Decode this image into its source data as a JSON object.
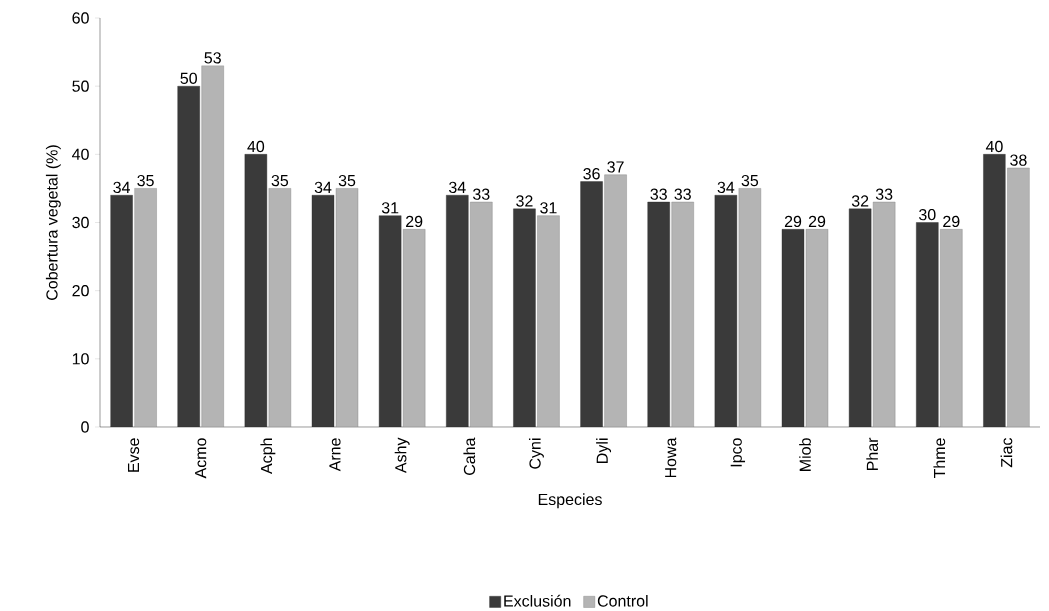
{
  "chart_data": {
    "type": "bar",
    "xlabel": "Especies",
    "ylabel": "Cobertura vegetal (%)",
    "categories": [
      "Evse",
      "Acmo",
      "Acph",
      "Arne",
      "Ashy",
      "Caha",
      "Cyni",
      "Dyli",
      "Howa",
      "Ipco",
      "Miob",
      "Phar",
      "Thme",
      "Ziac"
    ],
    "series": [
      {
        "name": "Exclusión",
        "color": "#3a3a3a",
        "values": [
          34,
          50,
          40,
          34,
          31,
          34,
          32,
          36,
          33,
          34,
          29,
          32,
          30,
          40
        ]
      },
      {
        "name": "Control",
        "color": "#b4b4b4",
        "values": [
          35,
          53,
          35,
          35,
          29,
          33,
          31,
          37,
          33,
          35,
          29,
          33,
          29,
          38
        ]
      }
    ],
    "ylim": [
      0,
      60
    ],
    "yticks": [
      0,
      10,
      20,
      30,
      40,
      50,
      60
    ],
    "data_labels": true,
    "legend": "bottom",
    "grid": false
  }
}
